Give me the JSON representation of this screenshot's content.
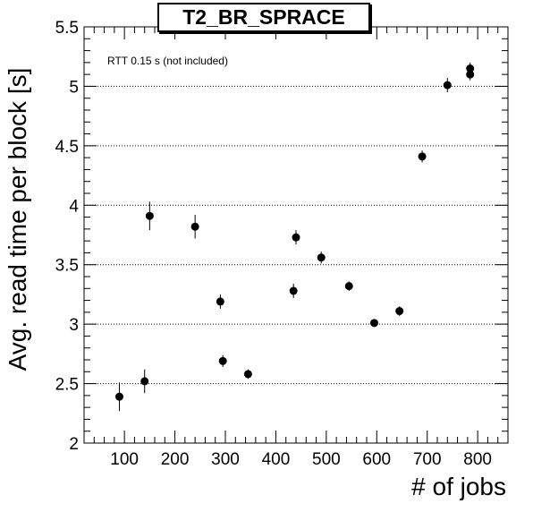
{
  "chart_data": {
    "type": "scatter",
    "title": "T2_BR_SPRACE",
    "annotation": "RTT 0.15 s (not included)",
    "xlabel": "# of jobs",
    "ylabel": "Avg. read time per block [s]",
    "xlim": [
      20,
      860
    ],
    "ylim": [
      2,
      5.5
    ],
    "x_ticks": [
      "100",
      "200",
      "300",
      "400",
      "500",
      "600",
      "700",
      "800"
    ],
    "y_ticks": [
      "2",
      "2.5",
      "3",
      "3.5",
      "4",
      "4.5",
      "5",
      "5.5"
    ],
    "grid": "horizontal-dotted",
    "series": [
      {
        "points": [
          {
            "x": 90,
            "y": 2.39,
            "err": 0.12
          },
          {
            "x": 140,
            "y": 2.52,
            "err": 0.1
          },
          {
            "x": 150,
            "y": 3.91,
            "err": 0.12
          },
          {
            "x": 240,
            "y": 3.82,
            "err": 0.1
          },
          {
            "x": 290,
            "y": 3.19,
            "err": 0.06
          },
          {
            "x": 295,
            "y": 2.69,
            "err": 0.05
          },
          {
            "x": 345,
            "y": 2.58,
            "err": 0.04
          },
          {
            "x": 435,
            "y": 3.28,
            "err": 0.06
          },
          {
            "x": 440,
            "y": 3.73,
            "err": 0.06
          },
          {
            "x": 490,
            "y": 3.56,
            "err": 0.05
          },
          {
            "x": 545,
            "y": 3.32,
            "err": 0.04
          },
          {
            "x": 595,
            "y": 3.01,
            "err": 0.03
          },
          {
            "x": 645,
            "y": 3.11,
            "err": 0.04
          },
          {
            "x": 690,
            "y": 4.41,
            "err": 0.05
          },
          {
            "x": 740,
            "y": 5.01,
            "err": 0.06
          },
          {
            "x": 785,
            "y": 5.1,
            "err": 0.05
          },
          {
            "x": 785,
            "y": 5.15,
            "err": 0.05
          }
        ]
      }
    ]
  }
}
